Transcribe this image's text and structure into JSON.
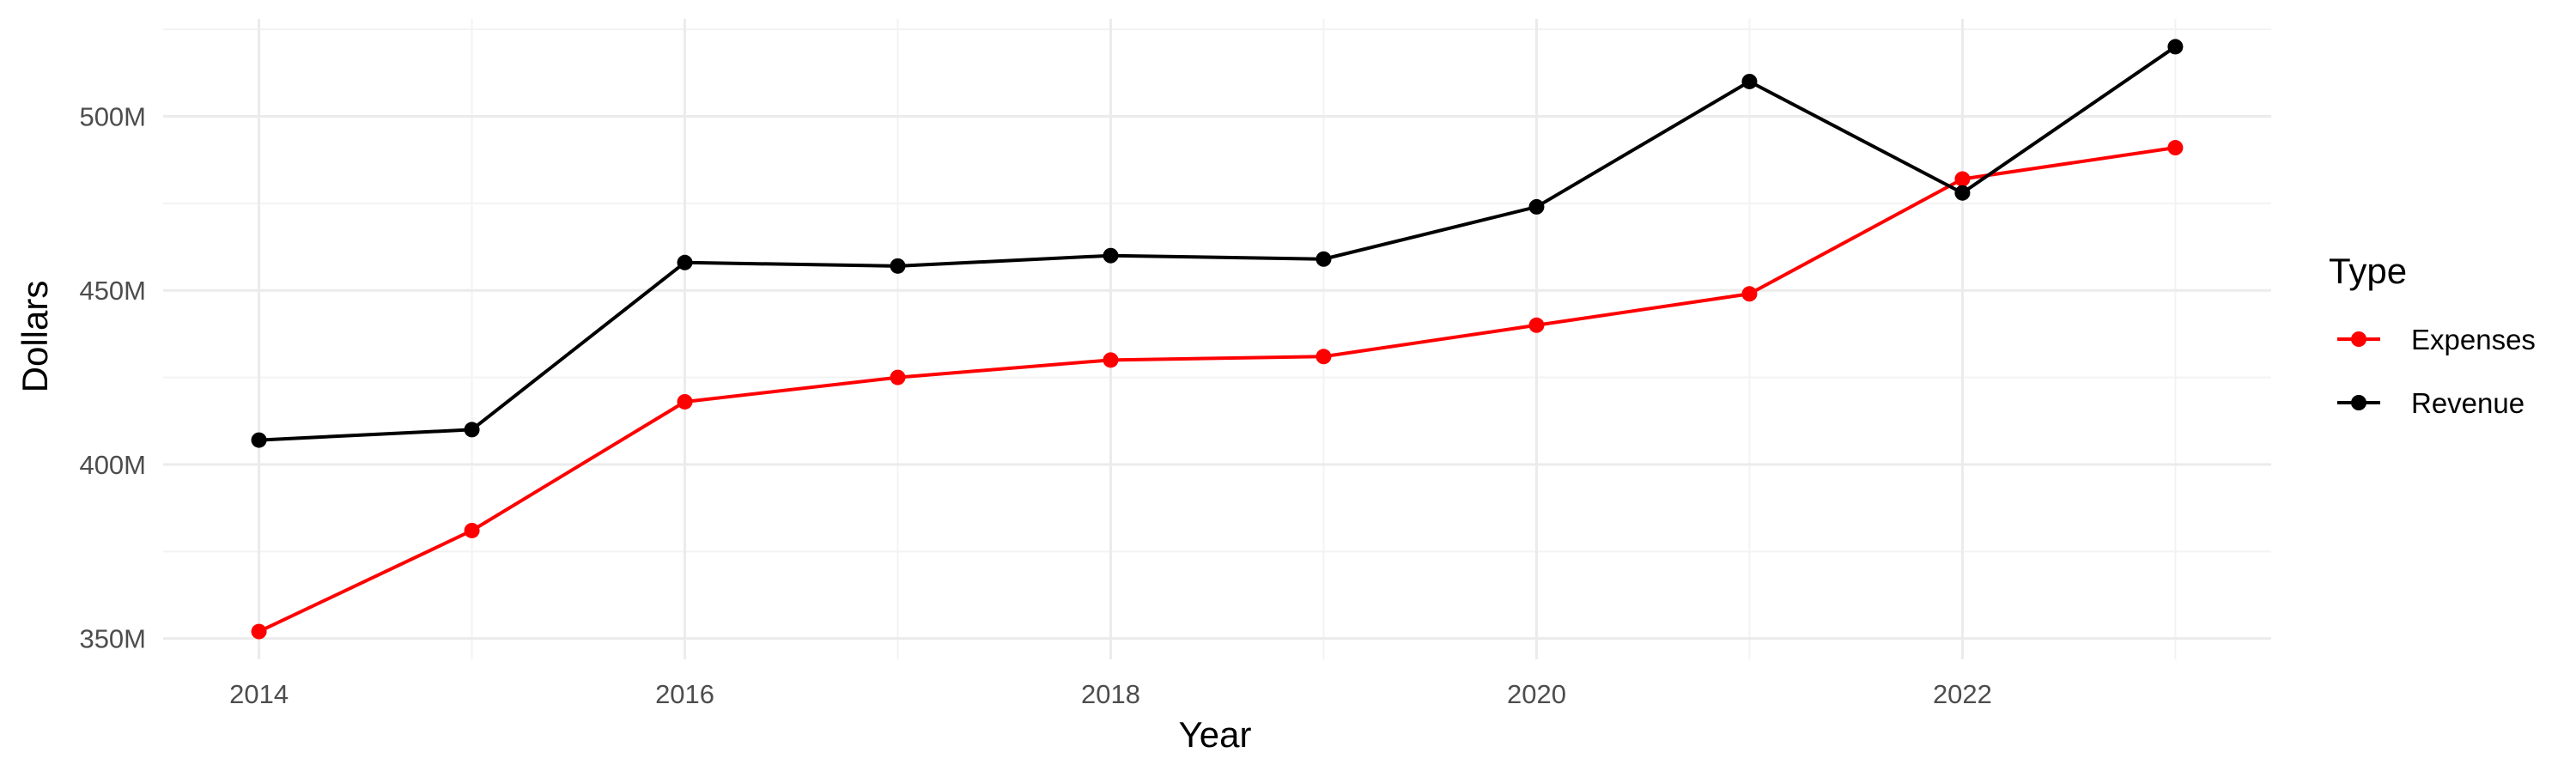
{
  "chart_data": {
    "type": "line",
    "title": "",
    "xlabel": "Year",
    "ylabel": "Dollars",
    "x": [
      2014,
      2015,
      2016,
      2017,
      2018,
      2019,
      2020,
      2021,
      2022,
      2023
    ],
    "xlim": [
      2013.55,
      2023.45
    ],
    "ylim": [
      344,
      528
    ],
    "x_ticks": [
      2014,
      2016,
      2018,
      2020,
      2022
    ],
    "x_tick_labels": [
      "2014",
      "2016",
      "2018",
      "2020",
      "2022"
    ],
    "y_ticks": [
      350,
      400,
      450,
      500
    ],
    "y_tick_labels": [
      "350M",
      "400M",
      "450M",
      "500M"
    ],
    "y_units": "millions of dollars",
    "grid": true,
    "legend": {
      "title": "Type",
      "position": "right",
      "entries": [
        "Expenses",
        "Revenue"
      ]
    },
    "series": [
      {
        "name": "Expenses",
        "color": "#ff0000",
        "values": [
          352,
          381,
          418,
          425,
          430,
          431,
          440,
          449,
          482,
          491
        ]
      },
      {
        "name": "Revenue",
        "color": "#000000",
        "values": [
          407,
          410,
          458,
          457,
          460,
          459,
          474,
          510,
          478,
          520
        ]
      }
    ]
  }
}
